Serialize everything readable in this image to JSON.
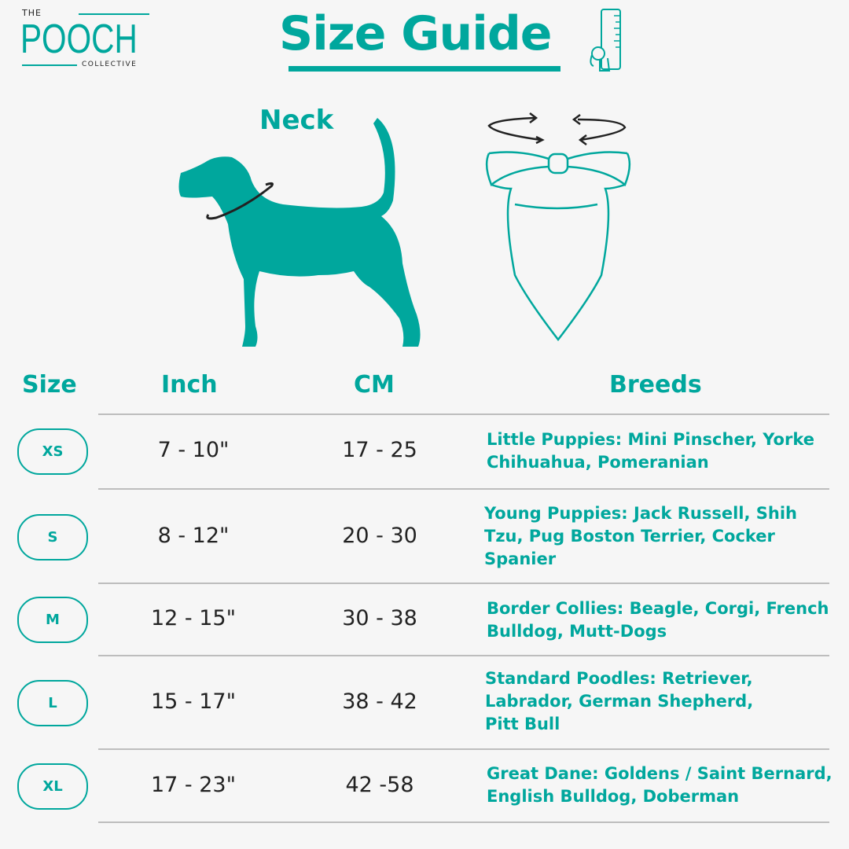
{
  "logo": {
    "the": "THE",
    "name": "POOCH",
    "collective": "COLLECTIVE"
  },
  "title": "Size Guide",
  "neck_label": "Neck",
  "headers": {
    "size": "Size",
    "inch": "Inch",
    "cm": "CM",
    "breeds": "Breeds"
  },
  "rows": [
    {
      "size": "XS",
      "inch": "7 - 10\"",
      "cm": "17 - 25",
      "breeds": "Little Puppies: Mini Pinscher, Yorke Chihuahua, Pomeranian"
    },
    {
      "size": "S",
      "inch": "8 - 12\"",
      "cm": "20 - 30",
      "breeds": "Young Puppies: Jack Russell, Shih Tzu, Pug Boston Terrier, Cocker Spanier"
    },
    {
      "size": "M",
      "inch": "12 - 15\"",
      "cm": "30 - 38",
      "breeds": "Border Collies: Beagle, Corgi, French Bulldog, Mutt-Dogs"
    },
    {
      "size": "L",
      "inch": "15 - 17\"",
      "cm": "38 - 42",
      "breeds": "Standard Poodles: Retriever, Labrador, German Shepherd, Pitt Bull"
    },
    {
      "size": "XL",
      "inch": "17 - 23\"",
      "cm": "42 -58",
      "breeds": "Great Dane: Goldens / Saint Bernard, English Bulldog, Doberman"
    }
  ],
  "colors": {
    "accent": "#00a79d",
    "text": "#222222",
    "background": "#f6f6f6"
  }
}
